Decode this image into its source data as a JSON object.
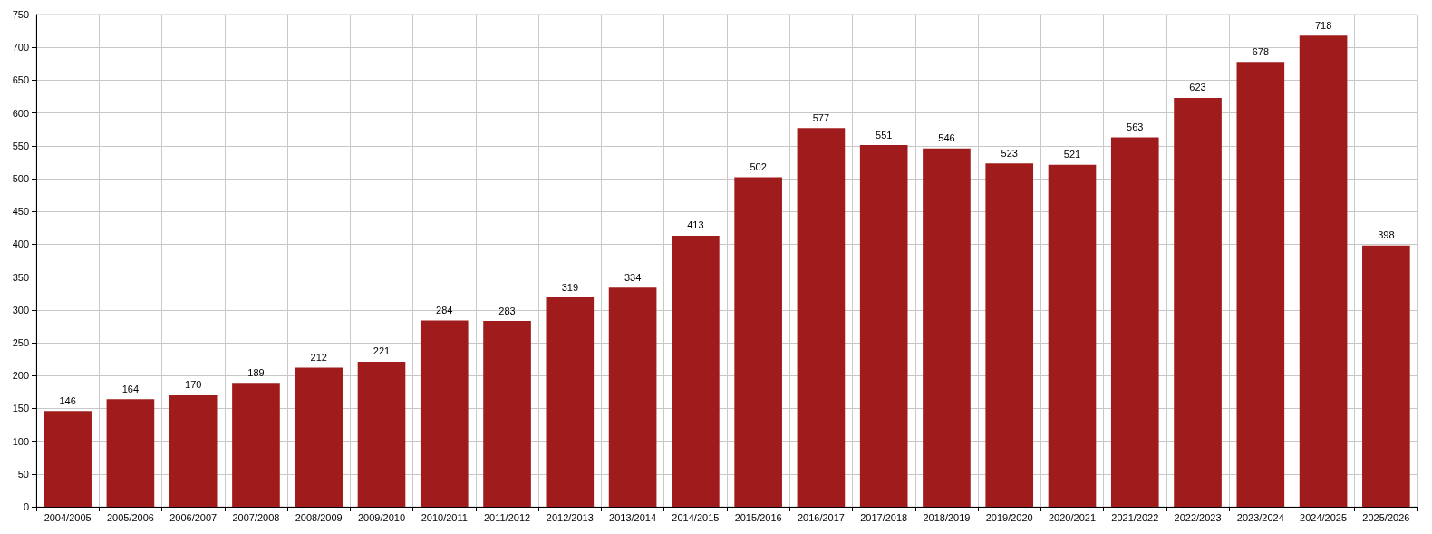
{
  "chart_data": {
    "type": "bar",
    "categories": [
      "2004/2005",
      "2005/2006",
      "2006/2007",
      "2007/2008",
      "2008/2009",
      "2009/2010",
      "2010/2011",
      "2011/2012",
      "2012/2013",
      "2013/2014",
      "2014/2015",
      "2015/2016",
      "2016/2017",
      "2017/2018",
      "2018/2019",
      "2019/2020",
      "2020/2021",
      "2021/2022",
      "2022/2023",
      "2023/2024",
      "2024/2025",
      "2025/2026"
    ],
    "values": [
      146,
      164,
      170,
      189,
      212,
      221,
      284,
      283,
      319,
      334,
      413,
      502,
      577,
      551,
      546,
      523,
      521,
      563,
      623,
      678,
      718,
      398
    ],
    "color": "#a01c1c",
    "ylim": [
      0,
      750
    ],
    "yticks": [
      0,
      50,
      100,
      150,
      200,
      250,
      300,
      350,
      400,
      450,
      500,
      550,
      600,
      650,
      700,
      750
    ],
    "grid": true,
    "data_labels": true
  }
}
